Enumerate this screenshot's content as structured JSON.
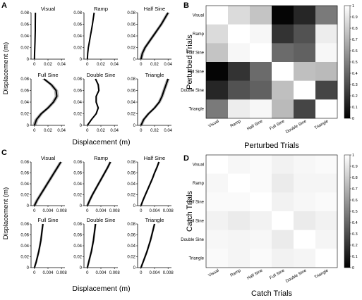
{
  "conditions": [
    "Visual",
    "Ramp",
    "Half Sine",
    "Full Sine",
    "Double Sine",
    "Triangle"
  ],
  "chart_data": [
    {
      "panel": "A",
      "type": "line",
      "ylabel": "Displacement (m)",
      "xlabel": "Displacement (m)",
      "xlim": [
        -0.005,
        0.045
      ],
      "ylim": [
        0,
        0.08
      ],
      "xticks": [
        0,
        0.02,
        0.04
      ],
      "xtick_labels": [
        "0",
        "0.02",
        "0.04"
      ],
      "yticks": [
        0,
        0.02,
        0.04,
        0.06,
        0.08
      ],
      "ytick_labels": [
        "0",
        "0.02",
        "0.04",
        "0.06",
        "0.08"
      ],
      "subplots": [
        {
          "title": "Visual",
          "x": [
            0,
            0.0002,
            0.0005,
            0.0008,
            0.001,
            0.0012,
            0.0013,
            0.0014,
            0.0015
          ],
          "y": [
            0,
            0.01,
            0.02,
            0.03,
            0.04,
            0.05,
            0.06,
            0.07,
            0.08
          ],
          "band": 0.0005
        },
        {
          "title": "Ramp",
          "x": [
            0,
            0.0005,
            0.0015,
            0.003,
            0.0045,
            0.006,
            0.0075,
            0.0088,
            0.01
          ],
          "y": [
            0,
            0.01,
            0.02,
            0.03,
            0.04,
            0.05,
            0.06,
            0.07,
            0.08
          ],
          "band": 0.0006
        },
        {
          "title": "Half Sine",
          "x": [
            0,
            0.002,
            0.006,
            0.012,
            0.018,
            0.024,
            0.03,
            0.035,
            0.04
          ],
          "y": [
            0,
            0.01,
            0.02,
            0.03,
            0.04,
            0.05,
            0.06,
            0.07,
            0.08
          ],
          "band": 0.0025
        },
        {
          "title": "Full Sine",
          "x": [
            0,
            0.003,
            0.01,
            0.02,
            0.028,
            0.033,
            0.032,
            0.025,
            0.014
          ],
          "y": [
            0,
            0.01,
            0.02,
            0.03,
            0.04,
            0.05,
            0.06,
            0.07,
            0.08
          ],
          "band": 0.003
        },
        {
          "title": "Double Sine",
          "x": [
            0,
            0.006,
            0.013,
            0.016,
            0.013,
            0.013,
            0.017,
            0.016,
            0.012
          ],
          "y": [
            0,
            0.01,
            0.02,
            0.03,
            0.04,
            0.05,
            0.06,
            0.07,
            0.08
          ],
          "band": 0.0012
        },
        {
          "title": "Triangle",
          "x": [
            0,
            0.004,
            0.011,
            0.02,
            0.027,
            0.031,
            0.034,
            0.037,
            0.04
          ],
          "y": [
            0,
            0.01,
            0.02,
            0.03,
            0.04,
            0.05,
            0.06,
            0.07,
            0.08
          ],
          "band": 0.0025
        }
      ]
    },
    {
      "panel": "B",
      "type": "heatmap",
      "xlabel": "Perturbed Trials",
      "ylabel": "Perturbed Trials",
      "rows": [
        "Visual",
        "Ramp",
        "Half Sine",
        "Full Sine",
        "Double Sine",
        "Triangle"
      ],
      "cols": [
        "Visual",
        "Ramp",
        "Half Sine",
        "Full Sine",
        "Double Sine",
        "Triangle"
      ],
      "values": [
        [
          1.0,
          0.86,
          0.77,
          0.02,
          0.15,
          0.48
        ],
        [
          0.86,
          1.0,
          0.97,
          0.2,
          0.32,
          0.93
        ],
        [
          0.77,
          0.97,
          1.0,
          0.42,
          0.38,
          0.97
        ],
        [
          0.02,
          0.2,
          0.42,
          1.0,
          0.75,
          0.73
        ],
        [
          0.15,
          0.32,
          0.38,
          0.75,
          1.0,
          0.27
        ],
        [
          0.48,
          0.93,
          0.97,
          0.73,
          0.27,
          1.0
        ]
      ],
      "colorbar": {
        "min": 0,
        "max": 1,
        "ticks": [
          "0",
          "0.1",
          "0.2",
          "0.3",
          "0.4",
          "0.5",
          "0.6",
          "0.7",
          "0.8",
          "0.9",
          "1"
        ]
      }
    },
    {
      "panel": "C",
      "type": "line",
      "ylabel": "Displacement (m)",
      "xlabel": "Displacement (m)",
      "xlim": [
        -0.001,
        0.009
      ],
      "ylim": [
        0,
        0.08
      ],
      "xticks": [
        0,
        0.004,
        0.008
      ],
      "xtick_labels": [
        "0",
        "0.004",
        "0.008"
      ],
      "yticks": [
        0,
        0.02,
        0.04,
        0.06,
        0.08
      ],
      "ytick_labels": [
        "0",
        "0.02",
        "0.04",
        "0.06",
        "0.08"
      ],
      "subplots": [
        {
          "title": "Visual",
          "x": [
            0,
            0.0008,
            0.0018,
            0.0028,
            0.0038,
            0.0048,
            0.0058,
            0.0068,
            0.0078
          ],
          "y": [
            0,
            0.01,
            0.02,
            0.03,
            0.04,
            0.05,
            0.06,
            0.07,
            0.08
          ],
          "band": 0.0005
        },
        {
          "title": "Ramp",
          "x": [
            0,
            0.0007,
            0.0015,
            0.0024,
            0.0033,
            0.0042,
            0.0051,
            0.006,
            0.0068
          ],
          "y": [
            0,
            0.01,
            0.02,
            0.03,
            0.04,
            0.05,
            0.06,
            0.07,
            0.08
          ],
          "band": 0.0004
        },
        {
          "title": "Half Sine",
          "x": [
            0,
            0.0006,
            0.0013,
            0.002,
            0.0027,
            0.0034,
            0.004,
            0.0047,
            0.0053
          ],
          "y": [
            0,
            0.01,
            0.02,
            0.03,
            0.04,
            0.05,
            0.06,
            0.07,
            0.08
          ],
          "band": 0.0003
        },
        {
          "title": "Full Sine",
          "x": [
            0,
            0.0005,
            0.0009,
            0.0013,
            0.0016,
            0.0019,
            0.0021,
            0.0023,
            0.0025
          ],
          "y": [
            0,
            0.01,
            0.02,
            0.03,
            0.04,
            0.05,
            0.06,
            0.07,
            0.08
          ],
          "band": 0.0003
        },
        {
          "title": "Double Sine",
          "x": [
            0,
            0.0004,
            0.0008,
            0.0012,
            0.0015,
            0.0018,
            0.002,
            0.0022,
            0.0024
          ],
          "y": [
            0,
            0.01,
            0.02,
            0.03,
            0.04,
            0.05,
            0.06,
            0.07,
            0.08
          ],
          "band": 0.0003
        },
        {
          "title": "Triangle",
          "x": [
            0,
            0.0006,
            0.0012,
            0.0018,
            0.0023,
            0.0028,
            0.0032,
            0.0036,
            0.004
          ],
          "y": [
            0,
            0.01,
            0.02,
            0.03,
            0.04,
            0.05,
            0.06,
            0.07,
            0.08
          ],
          "band": 0.0003
        }
      ]
    },
    {
      "panel": "D",
      "type": "heatmap",
      "xlabel": "Catch Trials",
      "ylabel": "Catch Trials",
      "rows": [
        "Visual",
        "Ramp",
        "Half Sine",
        "Full Sine",
        "Double Sine",
        "Triangle"
      ],
      "cols": [
        "Visual",
        "Ramp",
        "Half Sine",
        "Full Sine",
        "Double Sine",
        "Triangle"
      ],
      "values": [
        [
          1.0,
          0.97,
          0.98,
          0.95,
          0.97,
          0.98
        ],
        [
          0.97,
          1.0,
          0.98,
          0.92,
          0.96,
          0.96
        ],
        [
          0.98,
          0.98,
          1.0,
          0.95,
          0.97,
          0.98
        ],
        [
          0.95,
          0.92,
          0.95,
          1.0,
          0.92,
          0.95
        ],
        [
          0.97,
          0.96,
          0.97,
          0.92,
          1.0,
          0.96
        ],
        [
          0.98,
          0.96,
          0.98,
          0.95,
          0.96,
          1.0
        ]
      ],
      "colorbar": {
        "min": 0,
        "max": 1,
        "ticks": [
          "0",
          "0.1",
          "0.2",
          "0.3",
          "0.4",
          "0.5",
          "0.6",
          "0.7",
          "0.8",
          "0.9",
          "1"
        ]
      }
    }
  ]
}
